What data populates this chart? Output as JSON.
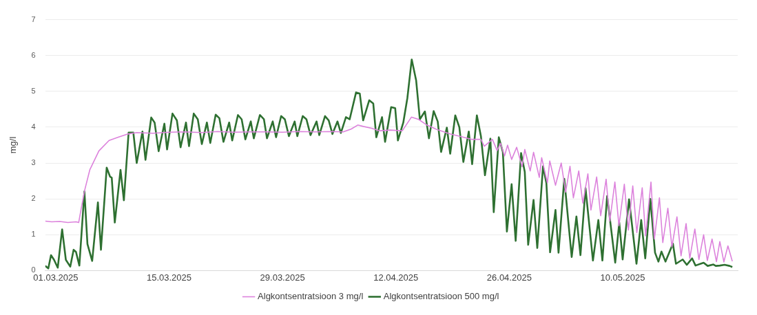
{
  "chart_data": {
    "type": "line",
    "ylabel": "mg/l",
    "ylim": [
      0,
      7
    ],
    "yticks": [
      0,
      1,
      2,
      3,
      4,
      5,
      6,
      7
    ],
    "xlim": [
      "2025-02-27T17:00",
      "2025-05-24T05:00"
    ],
    "xticks": [
      {
        "value": "2025-03-01",
        "label": "01.03.2025"
      },
      {
        "value": "2025-03-15",
        "label": "15.03.2025"
      },
      {
        "value": "2025-03-29",
        "label": "29.03.2025"
      },
      {
        "value": "2025-04-12",
        "label": "12.04.2025"
      },
      {
        "value": "2025-04-26",
        "label": "26.04.2025"
      },
      {
        "value": "2025-05-10",
        "label": "10.05.2025"
      }
    ],
    "grid": "y",
    "legend": "bottom",
    "series": [
      {
        "name": "Algkontsentratsioon 3 mg/l",
        "color": "#dc82dc",
        "x": [
          "2025-02-27T17:00",
          "2025-02-28T12:00",
          "2025-03-01T12:00",
          "2025-03-02T12:00",
          "2025-03-03T12:00",
          "2025-03-03T20:00",
          "2025-03-04T05:00",
          "2025-03-04T14:00",
          "2025-03-05T05:00",
          "2025-03-06T08:00",
          "2025-03-07T14:00",
          "2025-03-08T17:00",
          "2025-03-09T22:00",
          "2025-03-11T00:00",
          "2025-03-13T00:00",
          "2025-03-15T00:00",
          "2025-03-17T00:00",
          "2025-03-19T00:00",
          "2025-03-21T00:00",
          "2025-03-23T00:00",
          "2025-03-25T00:00",
          "2025-03-27T00:00",
          "2025-03-29T00:00",
          "2025-03-31T00:00",
          "2025-04-02T00:00",
          "2025-04-04T00:00",
          "2025-04-05T12:00",
          "2025-04-06T12:00",
          "2025-04-07T07:00",
          "2025-04-08T00:00",
          "2025-04-09T00:00",
          "2025-04-10T00:00",
          "2025-04-11T07:00",
          "2025-04-12T19:00",
          "2025-04-13T22:00",
          "2025-04-14T19:00",
          "2025-04-15T20:00",
          "2025-04-17T00:00",
          "2025-04-18T17:00",
          "2025-04-19T20:00",
          "2025-04-21T10:00",
          "2025-04-22T12:00",
          "2025-04-22T22:00",
          "2025-04-23T22:00",
          "2025-04-24T12:00",
          "2025-04-24T22:00",
          "2025-04-25T10:00",
          "2025-04-25T19:00",
          "2025-04-26T07:00",
          "2025-04-26T22:00",
          "2025-04-27T14:00",
          "2025-04-27T22:00",
          "2025-04-28T14:00",
          "2025-04-29T00:00",
          "2025-04-29T17:00",
          "2025-04-30T00:00",
          "2025-04-30T17:00",
          "2025-05-01T00:00",
          "2025-05-01T17:00",
          "2025-05-02T10:00",
          "2025-05-02T23:00",
          "2025-05-03T12:00",
          "2025-05-03T22:00",
          "2025-05-04T14:00",
          "2025-05-05T02:00",
          "2025-05-05T17:00",
          "2025-05-06T02:00",
          "2025-05-06T19:00",
          "2025-05-07T07:00",
          "2025-05-07T23:00",
          "2025-05-08T10:00",
          "2025-05-09T01:00",
          "2025-05-09T13:00",
          "2025-05-10T05:00",
          "2025-05-10T17:00",
          "2025-05-11T06:00",
          "2025-05-11T18:00",
          "2025-05-12T10:00",
          "2025-05-12T20:00",
          "2025-05-13T12:00",
          "2025-05-13T22:00",
          "2025-05-14T13:00",
          "2025-05-14T23:00",
          "2025-05-15T14:00",
          "2025-05-16T02:00",
          "2025-05-16T17:00",
          "2025-05-17T05:00",
          "2025-05-17T20:00",
          "2025-05-18T07:00",
          "2025-05-18T22:00",
          "2025-05-19T10:00",
          "2025-05-20T00:00",
          "2025-05-20T11:00",
          "2025-05-21T01:00",
          "2025-05-21T14:00",
          "2025-05-22T00:00",
          "2025-05-22T12:00",
          "2025-05-23T00:00",
          "2025-05-23T13:00"
        ],
        "values": [
          1.38,
          1.36,
          1.37,
          1.34,
          1.36,
          1.34,
          1.81,
          2.25,
          2.81,
          3.34,
          3.63,
          3.72,
          3.81,
          3.85,
          3.83,
          3.86,
          3.87,
          3.85,
          3.88,
          3.86,
          3.87,
          3.87,
          3.86,
          3.88,
          3.87,
          3.88,
          3.87,
          3.95,
          4.06,
          4.02,
          3.97,
          3.9,
          3.92,
          3.9,
          4.28,
          4.22,
          4.06,
          3.94,
          3.81,
          3.75,
          3.66,
          3.66,
          3.47,
          3.66,
          3.35,
          3.55,
          3.2,
          3.5,
          3.1,
          3.44,
          2.9,
          3.38,
          2.78,
          3.3,
          2.6,
          3.15,
          2.45,
          3.06,
          2.38,
          3.0,
          2.19,
          2.91,
          2.03,
          2.78,
          1.88,
          2.7,
          1.69,
          2.61,
          1.53,
          2.55,
          1.38,
          2.47,
          1.25,
          2.41,
          1.13,
          2.36,
          1.06,
          2.31,
          0.97,
          2.47,
          0.88,
          2.03,
          0.78,
          1.74,
          0.66,
          1.5,
          0.41,
          1.31,
          0.34,
          1.16,
          0.31,
          1.0,
          0.28,
          0.88,
          0.25,
          0.81,
          0.24,
          0.69,
          0.26
        ]
      },
      {
        "name": "Algkontsentratsioon 500 mg/l",
        "color": "#2e7031",
        "x": [
          "2025-02-27T17:00",
          "2025-02-28T02:00",
          "2025-02-28T10:00",
          "2025-02-28T19:00",
          "2025-03-01T06:00",
          "2025-03-01T19:00",
          "2025-03-02T06:00",
          "2025-03-02T19:00",
          "2025-03-03T05:00",
          "2025-03-03T12:00",
          "2025-03-03T22:00",
          "2025-03-04T13:00",
          "2025-03-04T22:00",
          "2025-03-05T12:00",
          "2025-03-06T05:00",
          "2025-03-06T14:00",
          "2025-03-07T07:00",
          "2025-03-07T17:00",
          "2025-03-07T22:00",
          "2025-03-08T07:00",
          "2025-03-09T00:00",
          "2025-03-09T10:00",
          "2025-03-10T00:00",
          "2025-03-10T14:00",
          "2025-03-11T00:00",
          "2025-03-11T17:00",
          "2025-03-12T02:00",
          "2025-03-12T19:00",
          "2025-03-13T05:00",
          "2025-03-13T17:00",
          "2025-03-14T10:00",
          "2025-03-14T18:00",
          "2025-03-15T10:00",
          "2025-03-15T23:00",
          "2025-03-16T10:00",
          "2025-03-17T02:00",
          "2025-03-17T11:00",
          "2025-03-18T01:00",
          "2025-03-18T13:00",
          "2025-03-19T01:00",
          "2025-03-19T16:00",
          "2025-03-20T02:00",
          "2025-03-20T18:00",
          "2025-03-21T05:00",
          "2025-03-21T17:00",
          "2025-03-22T10:00",
          "2025-03-22T19:00",
          "2025-03-23T12:00",
          "2025-03-23T23:00",
          "2025-03-24T10:00",
          "2025-03-25T02:00",
          "2025-03-25T11:00",
          "2025-03-26T05:00",
          "2025-03-26T17:00",
          "2025-03-27T02:00",
          "2025-03-27T19:00",
          "2025-03-28T05:00",
          "2025-03-28T20:00",
          "2025-03-29T07:00",
          "2025-03-29T19:00",
          "2025-03-30T12:00",
          "2025-03-30T20:00",
          "2025-03-31T12:00",
          "2025-03-31T23:00",
          "2025-04-01T11:00",
          "2025-04-02T05:00",
          "2025-04-02T13:00",
          "2025-04-03T06:00",
          "2025-04-03T17:00",
          "2025-04-04T04:00",
          "2025-04-04T19:00",
          "2025-04-05T05:00",
          "2025-04-05T20:00",
          "2025-04-06T07:00",
          "2025-04-07T02:00",
          "2025-04-07T13:00",
          "2025-04-07T23:00",
          "2025-04-08T17:00",
          "2025-04-09T05:00",
          "2025-04-09T14:00",
          "2025-04-10T07:00",
          "2025-04-10T16:00",
          "2025-04-11T10:00",
          "2025-04-11T22:00",
          "2025-04-12T06:00",
          "2025-04-12T22:00",
          "2025-04-13T10:00",
          "2025-04-13T23:00",
          "2025-04-14T12:00",
          "2025-04-14T23:00",
          "2025-04-15T14:00",
          "2025-04-16T02:00",
          "2025-04-16T16:00",
          "2025-04-17T04:00",
          "2025-04-17T14:00",
          "2025-04-18T07:00",
          "2025-04-18T17:00",
          "2025-04-19T08:00",
          "2025-04-19T20:00",
          "2025-04-20T08:00",
          "2025-04-21T00:00",
          "2025-04-21T10:00",
          "2025-04-22T00:00",
          "2025-04-22T12:00",
          "2025-04-23T00:00",
          "2025-04-23T16:00",
          "2025-04-24T02:00",
          "2025-04-24T17:00",
          "2025-04-25T05:00",
          "2025-04-25T17:00",
          "2025-04-26T07:00",
          "2025-04-26T19:00",
          "2025-04-27T11:00",
          "2025-04-27T22:00",
          "2025-04-28T08:00",
          "2025-04-29T00:00",
          "2025-04-29T11:00",
          "2025-04-30T04:00",
          "2025-04-30T14:00",
          "2025-05-01T01:00",
          "2025-05-01T17:00",
          "2025-05-02T02:00",
          "2025-05-02T19:00",
          "2025-05-03T17:00",
          "2025-05-04T07:00",
          "2025-05-04T19:00",
          "2025-05-05T10:00",
          "2025-05-06T08:00",
          "2025-05-07T00:00",
          "2025-05-07T12:00",
          "2025-05-08T02:00",
          "2025-05-09T02:00",
          "2025-05-09T14:00",
          "2025-05-10T00:00",
          "2025-05-10T19:00",
          "2025-05-11T17:00",
          "2025-05-12T07:00",
          "2025-05-12T19:00",
          "2025-05-13T10:00",
          "2025-05-14T00:00",
          "2025-05-14T10:00",
          "2025-05-14T19:00",
          "2025-05-15T07:00",
          "2025-05-16T05:00",
          "2025-05-16T14:00",
          "2025-05-17T10:00",
          "2025-05-17T22:00",
          "2025-05-18T14:00",
          "2025-05-19T00:00",
          "2025-05-20T00:00",
          "2025-05-20T12:00",
          "2025-05-21T05:00",
          "2025-05-21T12:00",
          "2025-05-22T00:00",
          "2025-05-22T14:00",
          "2025-05-23T05:00",
          "2025-05-23T13:00"
        ],
        "values": [
          0.13,
          0.06,
          0.43,
          0.3,
          0.08,
          1.15,
          0.3,
          0.11,
          0.58,
          0.52,
          0.14,
          2.21,
          0.74,
          0.27,
          1.9,
          0.58,
          2.87,
          2.62,
          2.59,
          1.34,
          2.81,
          1.96,
          3.85,
          3.85,
          3.0,
          3.88,
          3.09,
          4.27,
          4.13,
          3.33,
          4.1,
          3.38,
          4.38,
          4.19,
          3.44,
          4.13,
          3.47,
          4.38,
          4.22,
          3.53,
          4.13,
          3.56,
          4.35,
          4.25,
          3.59,
          4.13,
          3.63,
          4.34,
          4.22,
          3.66,
          4.16,
          3.69,
          4.34,
          4.22,
          3.69,
          4.16,
          3.72,
          4.31,
          4.22,
          3.75,
          4.16,
          3.75,
          4.31,
          4.22,
          3.78,
          4.16,
          3.78,
          4.31,
          4.19,
          3.81,
          4.16,
          3.84,
          4.28,
          4.22,
          4.97,
          4.94,
          4.19,
          4.75,
          4.66,
          3.72,
          4.28,
          3.59,
          4.56,
          4.53,
          3.63,
          4.13,
          4.81,
          5.89,
          5.31,
          4.22,
          4.44,
          3.69,
          4.45,
          4.16,
          3.31,
          3.99,
          3.26,
          4.33,
          4.0,
          3.03,
          3.88,
          2.97,
          4.33,
          3.75,
          2.66,
          3.68,
          1.63,
          3.72,
          3.31,
          1.09,
          2.41,
          0.83,
          3.28,
          2.75,
          0.72,
          1.97,
          0.63,
          2.91,
          2.44,
          0.51,
          1.69,
          0.5,
          2.56,
          0.38,
          1.51,
          0.43,
          2.3,
          0.28,
          1.41,
          0.28,
          2.08,
          0.22,
          1.34,
          0.31,
          1.99,
          0.19,
          1.41,
          0.34,
          2.0,
          0.5,
          0.25,
          0.53,
          0.25,
          0.75,
          0.19,
          0.31,
          0.16,
          0.34,
          0.14,
          0.22,
          0.13,
          0.17,
          0.13,
          0.14,
          0.16,
          0.13,
          0.1
        ]
      }
    ]
  }
}
